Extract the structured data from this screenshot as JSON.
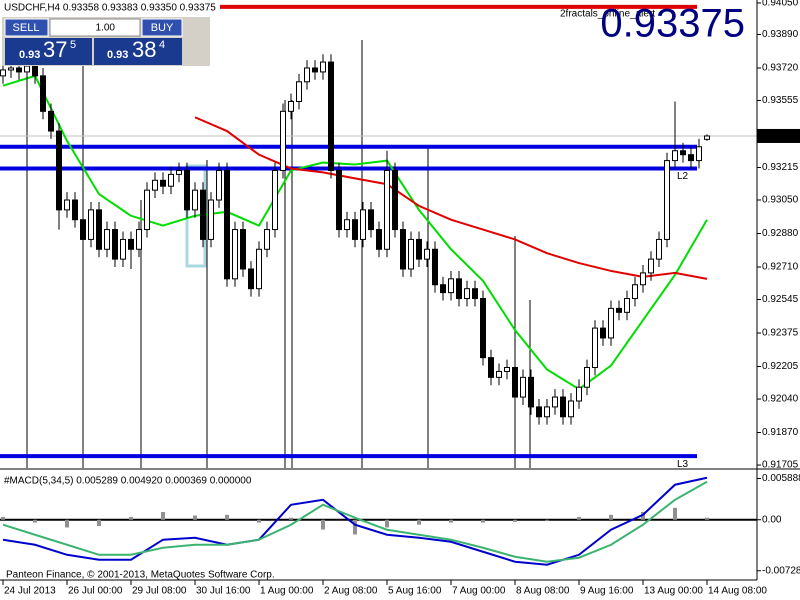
{
  "trade_panel": {
    "sell": "SELL",
    "buy": "BUY",
    "lot": "1.00",
    "bid": {
      "big": "0.93",
      "pips": "37",
      "frac": "5"
    },
    "ask": {
      "big": "0.93",
      "pips": "38",
      "frac": "4"
    }
  },
  "big_price": "0.93375",
  "indicator_name": "2fractals_online_alert",
  "copyright": "Panteon Finance, © 2001-2013, MetaQuotes Software Corp.",
  "chart_data": [
    {
      "type": "candlestick",
      "title": "USDCHF,H4 0.93358 0.93383 0.93350 0.93375",
      "categories": [
        "24 Jul 2013",
        null,
        null,
        null,
        null,
        null,
        null,
        null,
        "26 Jul 00:00",
        null,
        null,
        null,
        null,
        null,
        null,
        null,
        "29 Jul 08:00",
        null,
        null,
        null,
        null,
        null,
        null,
        null,
        "30 Jul 16:00",
        null,
        null,
        null,
        null,
        null,
        null,
        null,
        "1 Aug 00:00",
        null,
        null,
        null,
        null,
        null,
        null,
        null,
        "2 Aug 08:00",
        null,
        null,
        null,
        null,
        null,
        null,
        null,
        "5 Aug 16:00",
        null,
        null,
        null,
        null,
        null,
        null,
        null,
        "7 Aug 00:00",
        null,
        null,
        null,
        null,
        null,
        null,
        null,
        "8 Aug 08:00",
        null,
        null,
        null,
        null,
        null,
        null,
        null,
        "9 Aug 16:00",
        null,
        null,
        null,
        null,
        null,
        null,
        null,
        "13 Aug 00:00",
        null,
        null,
        null,
        null,
        null,
        null,
        null,
        "14 Aug 08:00"
      ],
      "ohlc": [
        [
          0.9368,
          0.9375,
          0.9364,
          0.9371
        ],
        [
          0.9371,
          0.9376,
          0.9367,
          0.9372
        ],
        [
          0.9372,
          0.9376,
          0.9366,
          0.937
        ],
        [
          0.937,
          0.9377,
          0.9366,
          0.9373
        ],
        [
          0.9373,
          0.9377,
          0.9364,
          0.9368
        ],
        [
          0.9368,
          0.9372,
          0.9346,
          0.935
        ],
        [
          0.935,
          0.9354,
          0.9336,
          0.934
        ],
        [
          0.934,
          0.9344,
          0.929,
          0.93
        ],
        [
          0.93,
          0.9309,
          0.9296,
          0.9305
        ],
        [
          0.9305,
          0.9309,
          0.9291,
          0.9295
        ],
        [
          0.9295,
          0.9299,
          0.9281,
          0.9285
        ],
        [
          0.9285,
          0.9304,
          0.9281,
          0.93
        ],
        [
          0.93,
          0.9304,
          0.9276,
          0.928
        ],
        [
          0.928,
          0.9294,
          0.9276,
          0.929
        ],
        [
          0.929,
          0.9294,
          0.9271,
          0.9275
        ],
        [
          0.9275,
          0.9289,
          0.9271,
          0.9285
        ],
        [
          0.9285,
          0.9289,
          0.927,
          0.928
        ],
        [
          0.928,
          0.9294,
          0.9276,
          0.929
        ],
        [
          0.929,
          0.9314,
          0.9286,
          0.931
        ],
        [
          0.931,
          0.9319,
          0.9306,
          0.9315
        ],
        [
          0.9315,
          0.9319,
          0.9308,
          0.9312
        ],
        [
          0.9312,
          0.9322,
          0.9308,
          0.9318
        ],
        [
          0.9318,
          0.9324,
          0.9314,
          0.932
        ],
        [
          0.932,
          0.9324,
          0.9296,
          0.93
        ],
        [
          0.93,
          0.9314,
          0.9296,
          0.931
        ],
        [
          0.931,
          0.9314,
          0.9281,
          0.9285
        ],
        [
          0.9285,
          0.9309,
          0.9281,
          0.9305
        ],
        [
          0.9305,
          0.9324,
          0.9301,
          0.932
        ],
        [
          0.932,
          0.9324,
          0.9261,
          0.9265
        ],
        [
          0.9265,
          0.9294,
          0.9261,
          0.929
        ],
        [
          0.929,
          0.9294,
          0.9266,
          0.927
        ],
        [
          0.927,
          0.9274,
          0.9256,
          0.926
        ],
        [
          0.926,
          0.9284,
          0.9256,
          0.928
        ],
        [
          0.928,
          0.9294,
          0.9276,
          0.929
        ],
        [
          0.929,
          0.9324,
          0.9286,
          0.932
        ],
        [
          0.932,
          0.9354,
          0.9316,
          0.935
        ],
        [
          0.935,
          0.9359,
          0.9346,
          0.9355
        ],
        [
          0.9355,
          0.9369,
          0.9351,
          0.9365
        ],
        [
          0.9365,
          0.9376,
          0.9361,
          0.9372
        ],
        [
          0.9372,
          0.9376,
          0.9366,
          0.937
        ],
        [
          0.937,
          0.9379,
          0.9366,
          0.9375
        ],
        [
          0.9375,
          0.9379,
          0.9316,
          0.932
        ],
        [
          0.932,
          0.9324,
          0.9286,
          0.929
        ],
        [
          0.929,
          0.9299,
          0.9286,
          0.9295
        ],
        [
          0.9295,
          0.9299,
          0.9281,
          0.9285
        ],
        [
          0.9285,
          0.9304,
          0.9281,
          0.93
        ],
        [
          0.93,
          0.9304,
          0.9286,
          0.929
        ],
        [
          0.929,
          0.9294,
          0.9276,
          0.928
        ],
        [
          0.928,
          0.933,
          0.9276,
          0.932
        ],
        [
          0.932,
          0.9324,
          0.9286,
          0.929
        ],
        [
          0.929,
          0.9294,
          0.9266,
          0.927
        ],
        [
          0.927,
          0.9289,
          0.9266,
          0.9285
        ],
        [
          0.9285,
          0.9289,
          0.9271,
          0.9275
        ],
        [
          0.9275,
          0.9284,
          0.9271,
          0.928
        ],
        [
          0.928,
          0.9284,
          0.9258,
          0.9262
        ],
        [
          0.9262,
          0.9266,
          0.9254,
          0.9258
        ],
        [
          0.9258,
          0.9269,
          0.9254,
          0.9265
        ],
        [
          0.9265,
          0.9269,
          0.9251,
          0.9255
        ],
        [
          0.9255,
          0.9264,
          0.9251,
          0.926
        ],
        [
          0.926,
          0.9264,
          0.9251,
          0.9255
        ],
        [
          0.9255,
          0.9259,
          0.9221,
          0.9225
        ],
        [
          0.9225,
          0.9229,
          0.9211,
          0.9215
        ],
        [
          0.9215,
          0.9222,
          0.9211,
          0.9218
        ],
        [
          0.9218,
          0.9224,
          0.9214,
          0.922
        ],
        [
          0.922,
          0.9224,
          0.9201,
          0.9205
        ],
        [
          0.9205,
          0.9219,
          0.9201,
          0.9215
        ],
        [
          0.9215,
          0.9219,
          0.9196,
          0.92
        ],
        [
          0.92,
          0.9204,
          0.9191,
          0.9195
        ],
        [
          0.9195,
          0.9204,
          0.9191,
          0.92
        ],
        [
          0.92,
          0.9209,
          0.9196,
          0.9205
        ],
        [
          0.9205,
          0.9209,
          0.9191,
          0.9195
        ],
        [
          0.9195,
          0.9207,
          0.9191,
          0.9203
        ],
        [
          0.9203,
          0.9214,
          0.9199,
          0.921
        ],
        [
          0.921,
          0.9224,
          0.9206,
          0.922
        ],
        [
          0.922,
          0.9244,
          0.9216,
          0.924
        ],
        [
          0.924,
          0.9244,
          0.9231,
          0.9235
        ],
        [
          0.9235,
          0.9254,
          0.9231,
          0.925
        ],
        [
          0.925,
          0.9254,
          0.9244,
          0.9248
        ],
        [
          0.9248,
          0.9259,
          0.9244,
          0.9255
        ],
        [
          0.9255,
          0.9266,
          0.9251,
          0.9262
        ],
        [
          0.9262,
          0.9272,
          0.9258,
          0.9268
        ],
        [
          0.9268,
          0.9279,
          0.9264,
          0.9275
        ],
        [
          0.9275,
          0.9289,
          0.9271,
          0.9285
        ],
        [
          0.9285,
          0.9329,
          0.9281,
          0.9325
        ],
        [
          0.9325,
          0.9355,
          0.9321,
          0.933
        ],
        [
          0.933,
          0.9334,
          0.9324,
          0.9328
        ],
        [
          0.9328,
          0.9332,
          0.9321,
          0.9325
        ],
        [
          0.9325,
          0.9336,
          0.9321,
          0.9332
        ],
        [
          0.93358,
          0.93383,
          0.9335,
          0.93375
        ]
      ],
      "series": [
        {
          "color": "#00dd00",
          "x": [
            0,
            4,
            8,
            12,
            16,
            20,
            24,
            28,
            32,
            36,
            40,
            44,
            48,
            52,
            56,
            60,
            64,
            68,
            72,
            76,
            80,
            84,
            88
          ],
          "values": [
            0.9363,
            0.9368,
            0.9335,
            0.9308,
            0.9297,
            0.9292,
            0.9297,
            0.9299,
            0.9292,
            0.932,
            0.9324,
            0.9323,
            0.9325,
            0.93,
            0.928,
            0.9264,
            0.9239,
            0.9219,
            0.9209,
            0.9221,
            0.9244,
            0.9267,
            0.9295
          ]
        },
        {
          "color": "#e00000",
          "x": [
            24,
            28,
            32,
            36,
            40,
            44,
            48,
            52,
            56,
            60,
            64,
            68,
            72,
            76,
            80,
            84,
            88
          ],
          "values": [
            0.9347,
            0.934,
            0.9328,
            0.9321,
            0.9319,
            0.9316,
            0.9313,
            0.9302,
            0.9295,
            0.929,
            0.9285,
            0.9278,
            0.9273,
            0.9269,
            0.9266,
            0.9268,
            0.9265
          ]
        }
      ],
      "levels": [
        {
          "value": 0.9403,
          "color": "#e00000"
        },
        {
          "value": 0.9332,
          "color": "#0000e0"
        },
        {
          "value": 0.9321,
          "color": "#0000e0",
          "label": "L2"
        },
        {
          "value": 0.9175,
          "color": "#0000e0",
          "label": "L3"
        }
      ],
      "last_price": {
        "value": 0.93375,
        "label": "0.93375"
      },
      "ylim": [
        0.9169,
        0.94065
      ],
      "yticks": [
        {
          "value": 0.9405,
          "label": "0.94050"
        },
        {
          "value": 0.9389,
          "label": "0.93890"
        },
        {
          "value": 0.9372,
          "label": "0.93720"
        },
        {
          "value": 0.93555,
          "label": "0.93555"
        },
        {
          "value": 0.93215,
          "label": "0.93215"
        },
        {
          "value": 0.9305,
          "label": "0.93050"
        },
        {
          "value": 0.9288,
          "label": "0.92880"
        },
        {
          "value": 0.9271,
          "label": "0.92710"
        },
        {
          "value": 0.92545,
          "label": "0.92545"
        },
        {
          "value": 0.92375,
          "label": "0.92375"
        },
        {
          "value": 0.92205,
          "label": "0.92205"
        },
        {
          "value": 0.9204,
          "label": "0.92040"
        },
        {
          "value": 0.9187,
          "label": "0.91870"
        },
        {
          "value": 0.91705,
          "label": "0.91705"
        }
      ]
    },
    {
      "type": "macd",
      "title": "#MACD(5,34,5) 0.005289 0.004920 0.000369 0.000000",
      "x": [
        0,
        4,
        8,
        12,
        16,
        20,
        24,
        28,
        32,
        36,
        40,
        44,
        48,
        52,
        56,
        60,
        64,
        68,
        72,
        76,
        80,
        84,
        88
      ],
      "histogram": [
        0.0004,
        -0.0004,
        -0.0011,
        -0.0009,
        0.0004,
        0.0011,
        0.0006,
        0.0007,
        -0.0004,
        0.0003,
        -0.0014,
        -0.0021,
        -0.0011,
        -0.0007,
        -0.0004,
        -0.0004,
        -0.0003,
        -0.0001,
        0.0004,
        0.0007,
        0.0011,
        0.0017,
        0.0003
      ],
      "series": [
        {
          "color": "#0000cc",
          "values": [
            -0.00285,
            -0.00357,
            -0.005,
            -0.00571,
            -0.00571,
            -0.00285,
            -0.00257,
            -0.00357,
            -0.00285,
            0.00214,
            0.00285,
            -0.00071,
            -0.00214,
            -0.00257,
            -0.00314,
            -0.00457,
            -0.00599,
            -0.00642,
            -0.005,
            -0.00143,
            0.00071,
            0.005,
            0.00599
          ]
        },
        {
          "color": "#3cb371",
          "values": [
            -0.00071,
            -0.00214,
            -0.00357,
            -0.005,
            -0.005,
            -0.004,
            -0.00357,
            -0.00357,
            -0.00285,
            -0.00071,
            0.00214,
            0.00029,
            -0.00143,
            -0.00214,
            -0.00285,
            -0.004,
            -0.00528,
            -0.00599,
            -0.00542,
            -0.00357,
            -0.00071,
            0.00285,
            0.00542
          ]
        }
      ],
      "ylim": [
        -0.0086,
        0.0071
      ],
      "yticks": [
        {
          "value": 0.005888,
          "label": "0.005888"
        },
        {
          "value": 0,
          "label": "0.00"
        },
        {
          "value": -0.007281,
          "label": "-0.007281"
        }
      ]
    }
  ]
}
